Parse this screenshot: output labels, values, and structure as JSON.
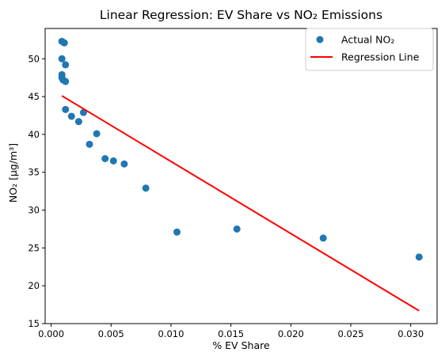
{
  "chart_data": {
    "type": "scatter",
    "title": "Linear Regression: EV Share vs NO₂ Emissions",
    "xlabel": "% EV Share",
    "ylabel": "NO₂ [µg/m³]",
    "xlim": [
      -0.0005,
      0.0322
    ],
    "ylim": [
      15.0,
      54.0
    ],
    "x_ticks": [
      0.0,
      0.005,
      0.01,
      0.015,
      0.02,
      0.025,
      0.03
    ],
    "x_tick_labels": [
      "0.000",
      "0.005",
      "0.010",
      "0.015",
      "0.020",
      "0.025",
      "0.030"
    ],
    "y_ticks": [
      15,
      20,
      25,
      30,
      35,
      40,
      45,
      50
    ],
    "y_tick_labels": [
      "15",
      "20",
      "25",
      "30",
      "35",
      "40",
      "45",
      "50"
    ],
    "grid": false,
    "legend_position": "top-right",
    "series": [
      {
        "name": "Actual NO₂",
        "kind": "scatter",
        "color": "#1f77b4",
        "points": [
          {
            "x": 0.0009,
            "y": 52.3
          },
          {
            "x": 0.0011,
            "y": 52.1
          },
          {
            "x": 0.0009,
            "y": 50.0
          },
          {
            "x": 0.0012,
            "y": 49.2
          },
          {
            "x": 0.0009,
            "y": 47.9
          },
          {
            "x": 0.0009,
            "y": 47.5
          },
          {
            "x": 0.001,
            "y": 47.2
          },
          {
            "x": 0.0012,
            "y": 47.0
          },
          {
            "x": 0.0012,
            "y": 43.3
          },
          {
            "x": 0.0017,
            "y": 42.4
          },
          {
            "x": 0.0027,
            "y": 42.9
          },
          {
            "x": 0.0023,
            "y": 41.7
          },
          {
            "x": 0.0038,
            "y": 40.1
          },
          {
            "x": 0.0032,
            "y": 38.7
          },
          {
            "x": 0.0045,
            "y": 36.8
          },
          {
            "x": 0.0052,
            "y": 36.5
          },
          {
            "x": 0.0061,
            "y": 36.1
          },
          {
            "x": 0.0079,
            "y": 32.9
          },
          {
            "x": 0.0105,
            "y": 27.1
          },
          {
            "x": 0.0155,
            "y": 27.5
          },
          {
            "x": 0.0227,
            "y": 26.3
          },
          {
            "x": 0.0307,
            "y": 23.8
          }
        ]
      },
      {
        "name": "Regression Line",
        "kind": "line",
        "color": "#ff0000",
        "points": [
          {
            "x": 0.0009,
            "y": 45.1
          },
          {
            "x": 0.0307,
            "y": 16.7
          }
        ]
      }
    ]
  }
}
